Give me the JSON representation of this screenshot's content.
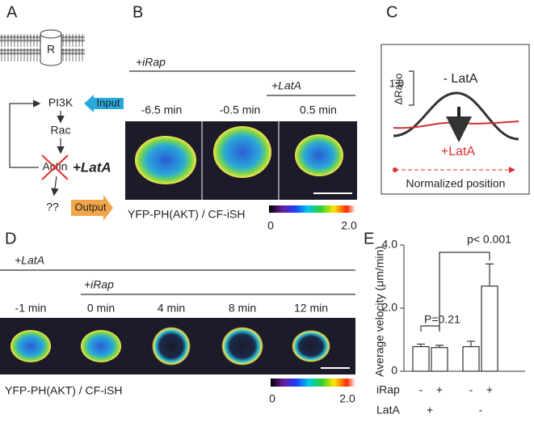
{
  "panels": {
    "A": {
      "label": "A",
      "receptor": "R",
      "nodes": [
        "PI3K",
        "Rac",
        "Actin",
        "??"
      ],
      "input": "Input",
      "output": "Output",
      "drug": "+LatA"
    },
    "B": {
      "label": "B",
      "treatments": [
        "+iRap",
        "+LatA"
      ],
      "times": [
        "-6.5 min",
        "-0.5 min",
        "0.5 min"
      ],
      "caption": "YFP-PH(AKT) / CF-iSH",
      "colorbar": [
        "0",
        "2.0"
      ]
    },
    "C": {
      "label": "C",
      "title": "- LatA",
      "ylabel": "ΔRatio",
      "scale": "1.0",
      "treated": "+LatA",
      "xlabel": "Normalized position"
    },
    "D": {
      "label": "D",
      "treatments": [
        "+LatA",
        "+iRap"
      ],
      "times": [
        "-1 min",
        "0 min",
        "4 min",
        "8 min",
        "12 min"
      ],
      "caption": "YFP-PH(AKT) / CF-iSH",
      "colorbar": [
        "0",
        "2.0"
      ]
    },
    "E": {
      "label": "E"
    }
  },
  "chart_data": {
    "type": "bar",
    "ylabel": "Average velocity (μm/min)",
    "category_title": "iRap",
    "categories": [
      "-",
      "+",
      "-",
      "+"
    ],
    "group_title": "LatA",
    "groups": [
      "+",
      "-"
    ],
    "values": [
      0.78,
      0.75,
      0.78,
      2.7
    ],
    "errors": [
      0.08,
      0.07,
      0.17,
      0.7
    ],
    "color": "#ffffff",
    "ylim": [
      0,
      4
    ],
    "yticks": [
      0,
      {
        "value": 2,
        "label": "2.0"
      },
      {
        "value": 4,
        "label": "4.0"
      }
    ],
    "annotations": [
      "P=0.21",
      "p< 0.001"
    ]
  }
}
